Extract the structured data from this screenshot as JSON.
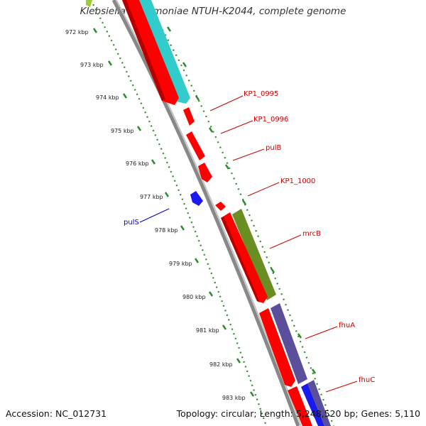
{
  "title": "Klebsiella pneumoniae NTUH-K2044, complete genome",
  "footer": {
    "accession": "Accession: NC_012731",
    "topology": "Topology: circular; Length: 5,248,520 bp; Genes: 5,110"
  },
  "ruler": [
    "972 kbp",
    "973 kbp",
    "974 kbp",
    "975 kbp",
    "976 kbp",
    "977 kbp",
    "978 kbp",
    "979 kbp",
    "980 kbp",
    "981 kbp",
    "982 kbp",
    "983 kbp"
  ],
  "gene_labels": [
    {
      "name": "KP1_0995",
      "color": "#cc0000"
    },
    {
      "name": "KP1_0996",
      "color": "#cc0000"
    },
    {
      "name": "pulB",
      "color": "#cc0000"
    },
    {
      "name": "KP1_1000",
      "color": "#cc0000"
    },
    {
      "name": "pulS",
      "color": "#0000cc"
    },
    {
      "name": "mrcB",
      "color": "#cc0000"
    },
    {
      "name": "fhuA",
      "color": "#cc0000"
    },
    {
      "name": "fhuC",
      "color": "#cc0000"
    }
  ],
  "colors": {
    "cds": "#ff0000",
    "backbone": "#888888",
    "ticks": "#2e8b2e",
    "cyan": "#33cccc",
    "olive": "#6b8e23",
    "slate": "#5b4e9b",
    "blue": "#1a1aee"
  }
}
